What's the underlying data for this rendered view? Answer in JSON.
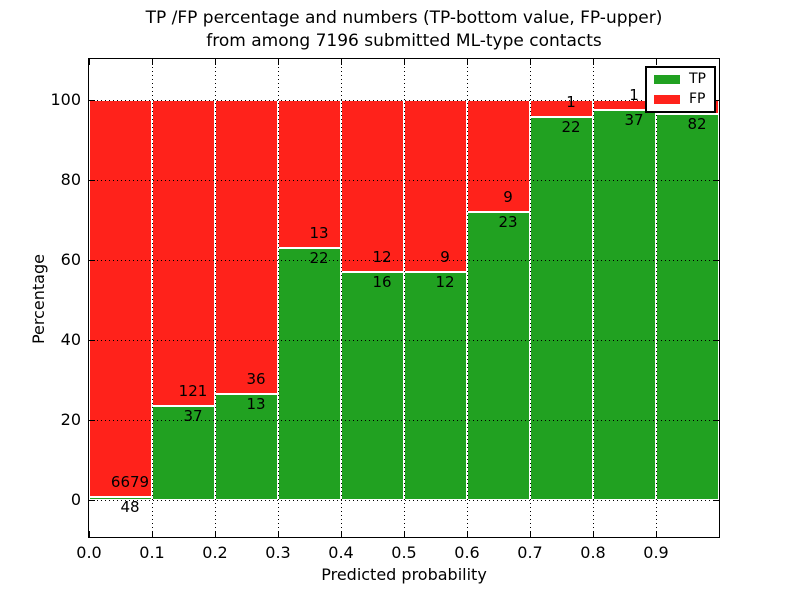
{
  "chart_data": {
    "type": "bar",
    "stacked": true,
    "orientation": "vertical",
    "title": "TP /FP percentage and numbers (TP-bottom value, FP-upper)\nfrom among 7196 submitted ML-type contacts",
    "xlabel": "Predicted probability",
    "ylabel": "Percentage",
    "xlim": [
      0.0,
      1.0
    ],
    "ylim": [
      -10,
      110
    ],
    "grid": "dotted",
    "bin_width": 0.1,
    "x_tick_labels": [
      "0.0",
      "0.1",
      "0.2",
      "0.3",
      "0.4",
      "0.5",
      "0.6",
      "0.7",
      "0.8",
      "0.9"
    ],
    "y_tick_values": [
      0,
      20,
      40,
      60,
      80,
      100
    ],
    "colors": {
      "tp": "#21a121",
      "fp": "#ff221b",
      "bar_edge": "#ffffff"
    },
    "legend": {
      "position": "upper right",
      "entries": [
        {
          "label": "TP",
          "color": "#21a121"
        },
        {
          "label": "FP",
          "color": "#ff221b"
        }
      ]
    },
    "note": "Each bin stacks TP (bottom, green) and FP (top, red) to 100%. Labels show raw counts; TP count below boundary, FP count above.",
    "bins": [
      {
        "x_range": [
          0.0,
          0.1
        ],
        "tp_pct": 0.7,
        "fp_pct": 99.3,
        "tp_label": "48",
        "fp_label": "6679"
      },
      {
        "x_range": [
          0.1,
          0.2
        ],
        "tp_pct": 23.4,
        "fp_pct": 76.6,
        "tp_label": "37",
        "fp_label": "121"
      },
      {
        "x_range": [
          0.2,
          0.3
        ],
        "tp_pct": 26.5,
        "fp_pct": 73.5,
        "tp_label": "13",
        "fp_label": "36"
      },
      {
        "x_range": [
          0.3,
          0.4
        ],
        "tp_pct": 62.9,
        "fp_pct": 37.1,
        "tp_label": "22",
        "fp_label": "13"
      },
      {
        "x_range": [
          0.4,
          0.5
        ],
        "tp_pct": 57.1,
        "fp_pct": 42.9,
        "tp_label": "16",
        "fp_label": "12"
      },
      {
        "x_range": [
          0.5,
          0.6
        ],
        "tp_pct": 57.1,
        "fp_pct": 42.9,
        "tp_label": "12",
        "fp_label": "9"
      },
      {
        "x_range": [
          0.6,
          0.7
        ],
        "tp_pct": 71.9,
        "fp_pct": 28.1,
        "tp_label": "23",
        "fp_label": "9"
      },
      {
        "x_range": [
          0.7,
          0.8
        ],
        "tp_pct": 95.7,
        "fp_pct": 4.3,
        "tp_label": "22",
        "fp_label": "1"
      },
      {
        "x_range": [
          0.8,
          0.9
        ],
        "tp_pct": 97.4,
        "fp_pct": 2.6,
        "tp_label": "37",
        "fp_label": "1"
      },
      {
        "x_range": [
          0.9,
          1.0
        ],
        "tp_pct": 96.5,
        "fp_pct": 3.5,
        "tp_label": "82",
        "fp_label": ""
      }
    ]
  }
}
